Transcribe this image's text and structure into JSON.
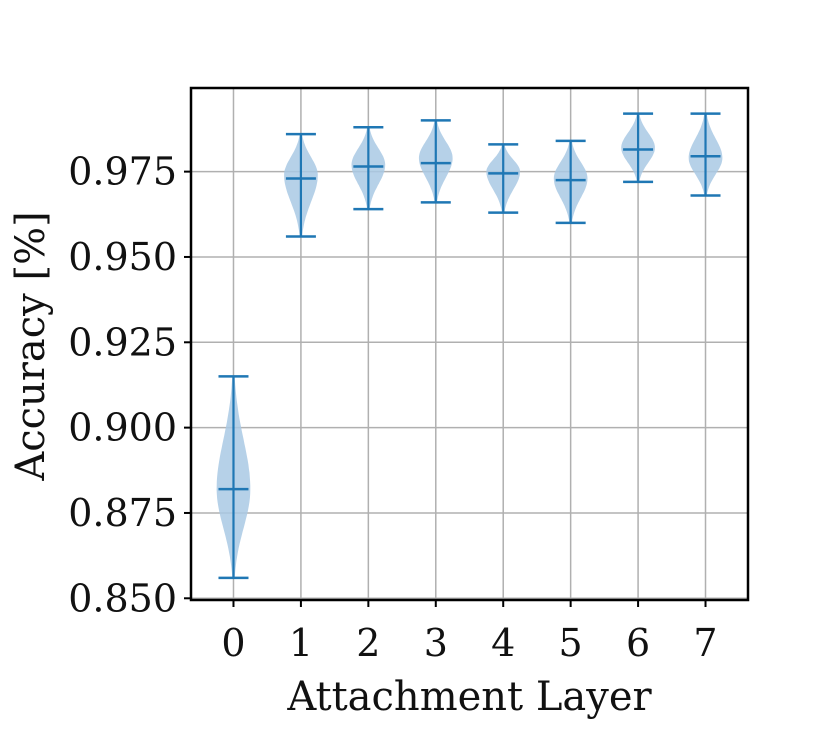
{
  "chart_data": {
    "type": "violin",
    "xlabel": "Attachment Layer",
    "ylabel": "Accuracy [%]",
    "categories": [
      "0",
      "1",
      "2",
      "3",
      "4",
      "5",
      "6",
      "7"
    ],
    "x_ticks": [
      "0",
      "1",
      "2",
      "3",
      "4",
      "5",
      "6",
      "7"
    ],
    "y_ticks": [
      "0.850",
      "0.875",
      "0.900",
      "0.925",
      "0.950",
      "0.975"
    ],
    "y_tick_values": [
      0.85,
      0.875,
      0.9,
      0.925,
      0.95,
      0.975
    ],
    "ylim": [
      0.8495,
      0.9995
    ],
    "grid": true,
    "colors": {
      "violin_fill": "#a9c9e4",
      "whisker": "#1f77b4",
      "grid": "#b0b0b0",
      "frame": "#000000"
    },
    "series": [
      {
        "category": "0",
        "min": 0.856,
        "max": 0.915,
        "median": 0.882,
        "mode": 0.882
      },
      {
        "category": "1",
        "min": 0.956,
        "max": 0.986,
        "median": 0.973,
        "mode": 0.974
      },
      {
        "category": "2",
        "min": 0.964,
        "max": 0.988,
        "median": 0.9765,
        "mode": 0.977
      },
      {
        "category": "3",
        "min": 0.966,
        "max": 0.99,
        "median": 0.9775,
        "mode": 0.979
      },
      {
        "category": "4",
        "min": 0.963,
        "max": 0.983,
        "median": 0.9745,
        "mode": 0.975
      },
      {
        "category": "5",
        "min": 0.96,
        "max": 0.984,
        "median": 0.9725,
        "mode": 0.973
      },
      {
        "category": "6",
        "min": 0.972,
        "max": 0.992,
        "median": 0.9815,
        "mode": 0.982
      },
      {
        "category": "7",
        "min": 0.968,
        "max": 0.992,
        "median": 0.9795,
        "mode": 0.979
      }
    ]
  }
}
